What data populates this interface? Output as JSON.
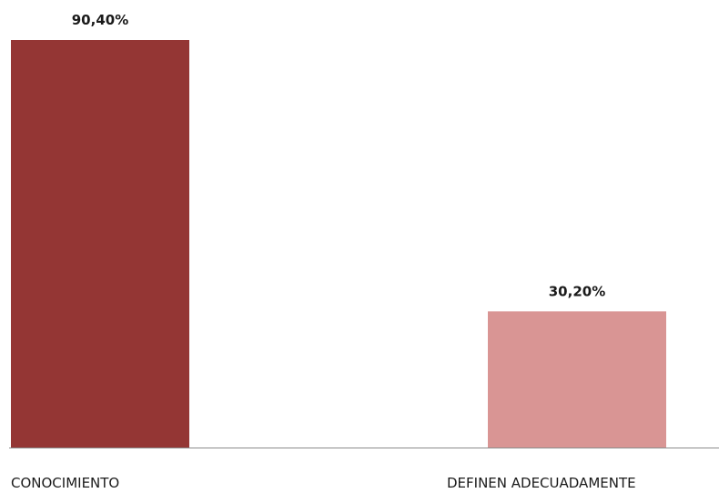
{
  "chart_data": {
    "type": "bar",
    "categories": [
      "CONOCIMIENTO",
      "DEFINEN ADECUADAMENTE"
    ],
    "values": [
      90.4,
      30.2
    ],
    "data_labels": [
      "90,40%",
      "30,20%"
    ],
    "colors": [
      "#943634",
      "#d99594"
    ],
    "ylim": [
      0,
      100
    ],
    "grid": false,
    "legend": "none",
    "title": "",
    "xlabel": "",
    "ylabel": ""
  }
}
